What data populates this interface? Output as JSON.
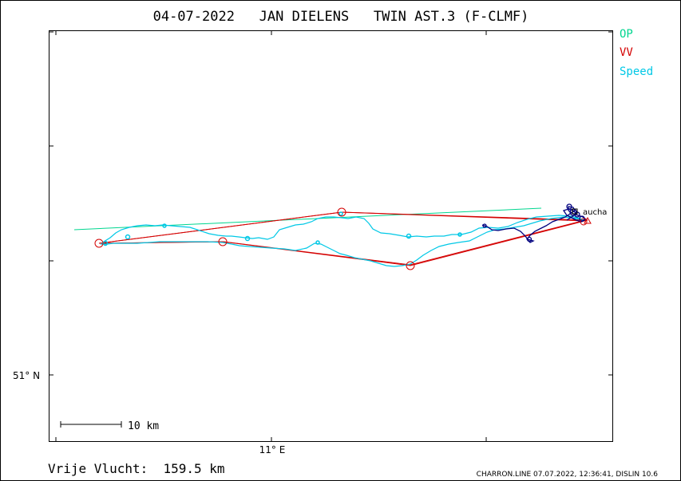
{
  "header": {
    "title": "04-07-2022   JAN DIELENS   TWIN AST.3 (F-CLMF)"
  },
  "legend": {
    "items": [
      {
        "label": "OP",
        "color": "#00d68f"
      },
      {
        "label": "VV",
        "color": "#d40000"
      },
      {
        "label": "Speed",
        "color": "#00c8e6"
      }
    ]
  },
  "map": {
    "lat_label": "51° N",
    "lon_label": "11° E",
    "scale_label": "10 km",
    "place_label": "aucha",
    "colors": {
      "frame": "#000000",
      "task": "#d40000",
      "op_line": "#00d68f",
      "track": "#00c8e6",
      "climb": "#00007f"
    }
  },
  "footer": {
    "distance_label": "Vrije Vlucht:  159.5 km",
    "credit": "CHARRON.LINE 07.07.2022, 12:36:41, DISLIN 10.6"
  }
}
